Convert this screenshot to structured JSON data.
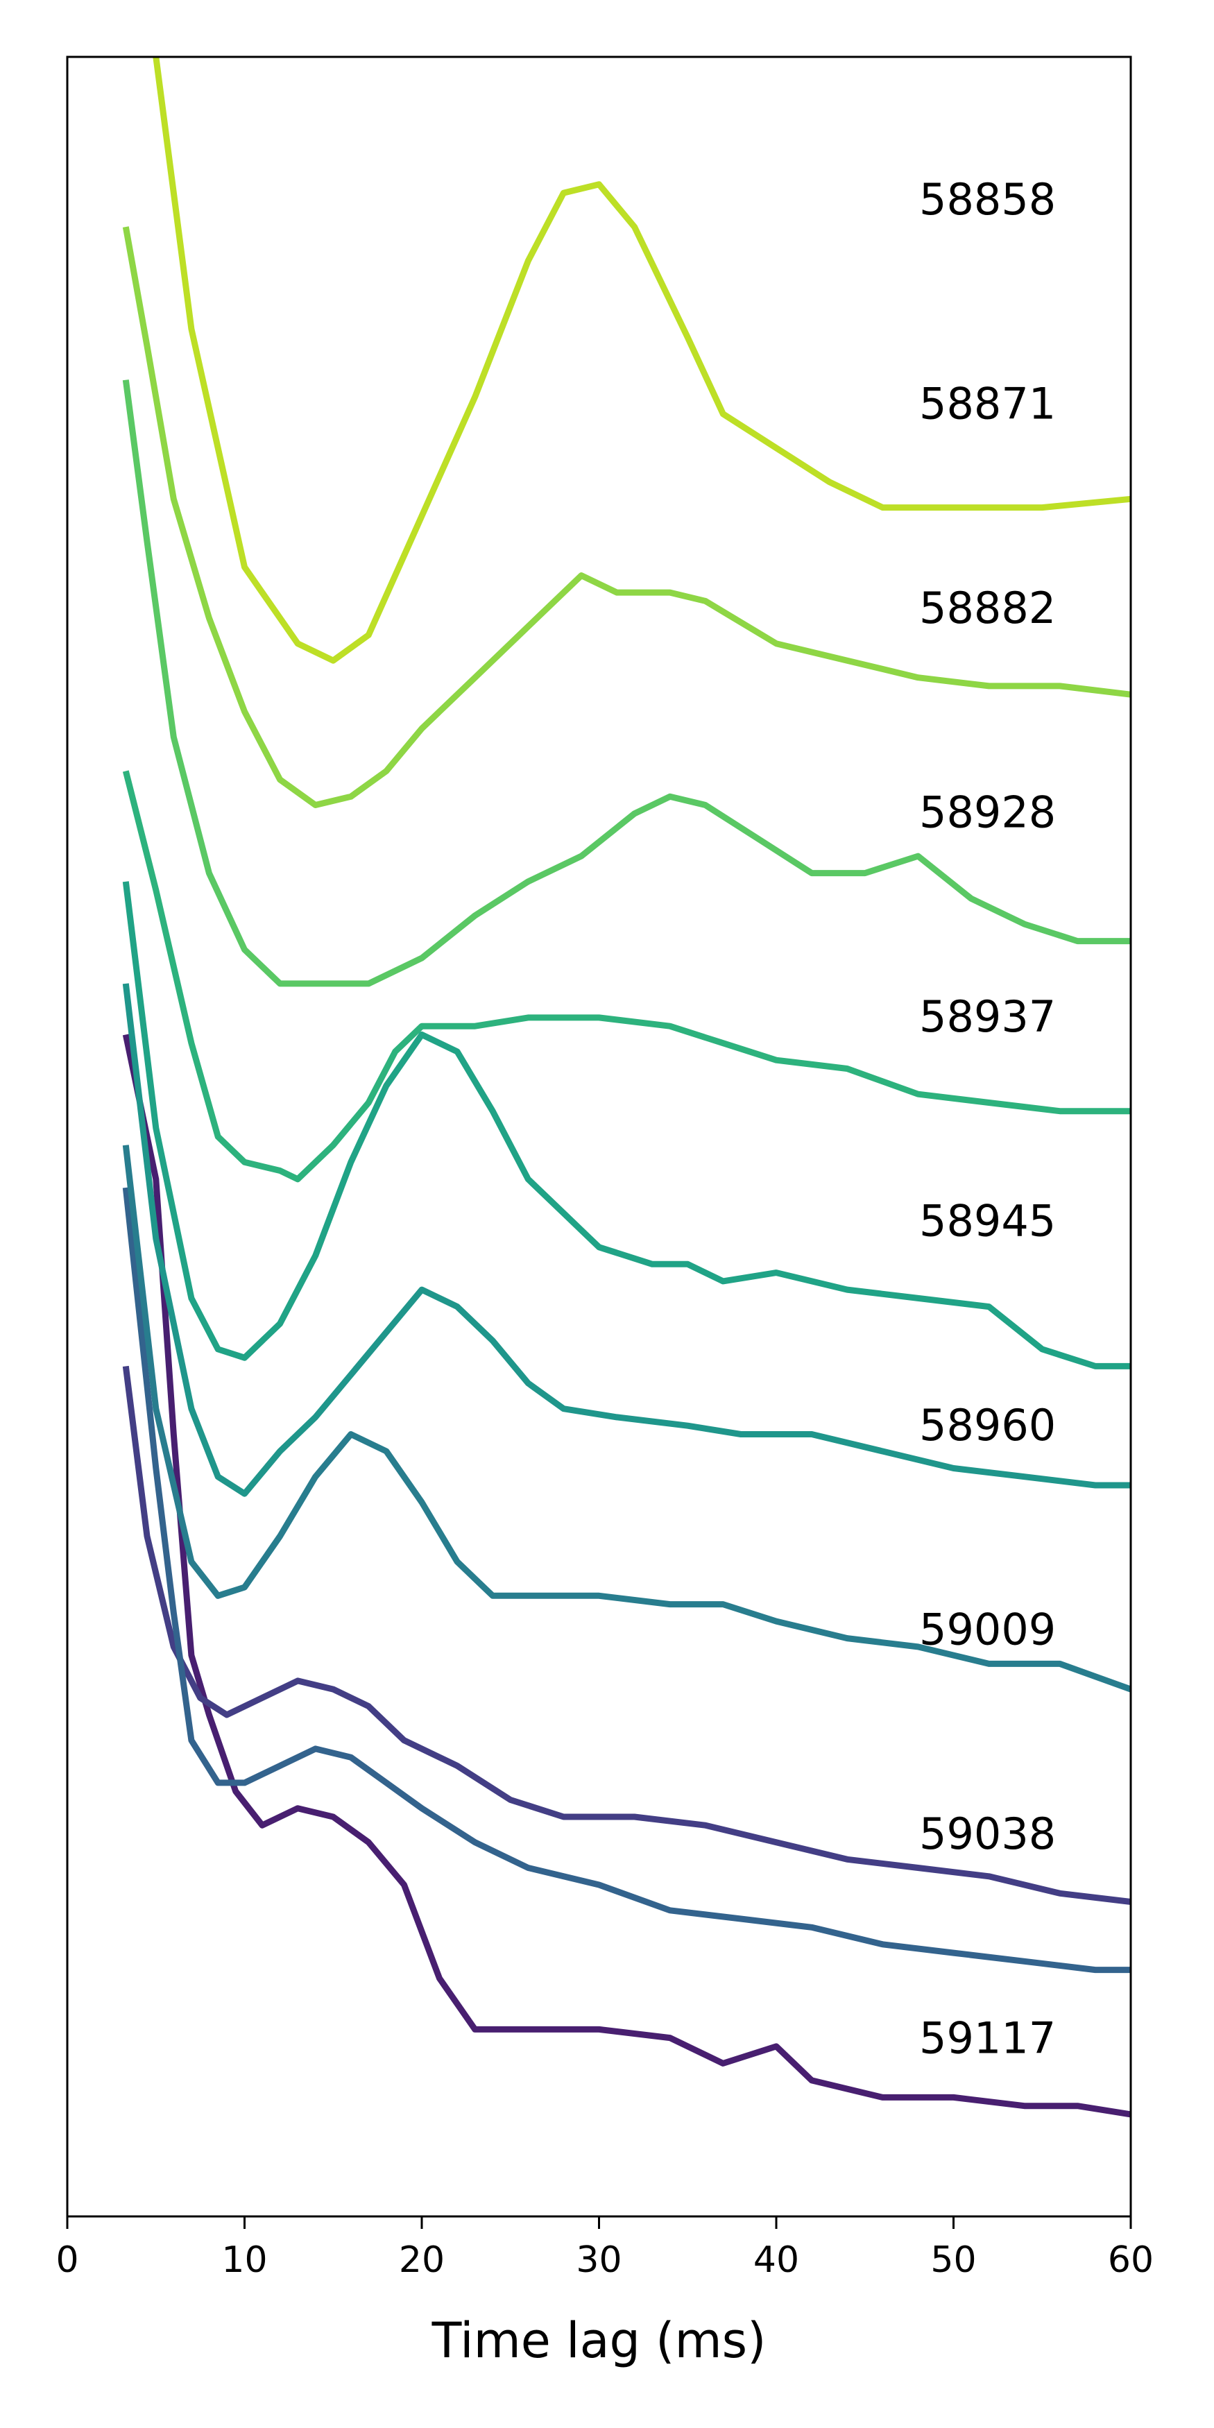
{
  "chart_data": {
    "type": "line",
    "title": "",
    "xlabel": "Time lag (ms)",
    "ylabel": "",
    "xlim": [
      0,
      60
    ],
    "xticks": [
      0,
      10,
      20,
      30,
      40,
      50,
      60
    ],
    "grid": false,
    "legend": "none",
    "y_axis_ticks_shown": false,
    "series_note_label_position": "inline at right",
    "series": [
      {
        "name": "58858",
        "color": "#bddf26",
        "points": [
          [
            5,
            31.2
          ],
          [
            7,
            28.0
          ],
          [
            10,
            25.2
          ],
          [
            13,
            24.3
          ],
          [
            15,
            24.1
          ],
          [
            17,
            24.4
          ],
          [
            20,
            25.8
          ],
          [
            23,
            27.2
          ],
          [
            26,
            28.8
          ],
          [
            28,
            29.6
          ],
          [
            30,
            29.7
          ],
          [
            32,
            29.2
          ],
          [
            35,
            27.9
          ],
          [
            37,
            27.0
          ],
          [
            40,
            26.6
          ],
          [
            43,
            26.2
          ],
          [
            46,
            25.9
          ],
          [
            50,
            25.9
          ],
          [
            55,
            25.9
          ],
          [
            60,
            26.0
          ]
        ]
      },
      {
        "name": "58871",
        "color": "#8ed645",
        "points": [
          [
            3.3,
            29.2
          ],
          [
            4.5,
            27.8
          ],
          [
            6,
            26.0
          ],
          [
            8,
            24.6
          ],
          [
            10,
            23.5
          ],
          [
            12,
            22.7
          ],
          [
            14,
            22.4
          ],
          [
            16,
            22.5
          ],
          [
            18,
            22.8
          ],
          [
            20,
            23.3
          ],
          [
            23,
            23.9
          ],
          [
            26,
            24.5
          ],
          [
            29,
            25.1
          ],
          [
            31,
            24.9
          ],
          [
            34,
            24.9
          ],
          [
            36,
            24.8
          ],
          [
            40,
            24.3
          ],
          [
            44,
            24.1
          ],
          [
            48,
            23.9
          ],
          [
            52,
            23.8
          ],
          [
            56,
            23.8
          ],
          [
            60,
            23.7
          ]
        ]
      },
      {
        "name": "58882",
        "color": "#5ac864",
        "points": [
          [
            3.3,
            27.4
          ],
          [
            4.5,
            25.5
          ],
          [
            6,
            23.2
          ],
          [
            8,
            21.6
          ],
          [
            10,
            20.7
          ],
          [
            12,
            20.3
          ],
          [
            14,
            20.3
          ],
          [
            17,
            20.3
          ],
          [
            20,
            20.6
          ],
          [
            23,
            21.1
          ],
          [
            26,
            21.5
          ],
          [
            29,
            21.8
          ],
          [
            32,
            22.3
          ],
          [
            34,
            22.5
          ],
          [
            36,
            22.4
          ],
          [
            39,
            22.0
          ],
          [
            42,
            21.6
          ],
          [
            45,
            21.6
          ],
          [
            48,
            21.8
          ],
          [
            51,
            21.3
          ],
          [
            54,
            21.0
          ],
          [
            57,
            20.8
          ],
          [
            60,
            20.8
          ]
        ]
      },
      {
        "name": "58928",
        "color": "#2db27d",
        "points": [
          [
            3.3,
            22.8
          ],
          [
            5,
            21.4
          ],
          [
            7,
            19.6
          ],
          [
            8.5,
            18.5
          ],
          [
            10,
            18.2
          ],
          [
            12,
            18.1
          ],
          [
            13,
            18.0
          ],
          [
            15,
            18.4
          ],
          [
            17,
            18.9
          ],
          [
            18.5,
            19.5
          ],
          [
            20,
            19.8
          ],
          [
            23,
            19.8
          ],
          [
            26,
            19.9
          ],
          [
            30,
            19.9
          ],
          [
            34,
            19.8
          ],
          [
            37,
            19.6
          ],
          [
            40,
            19.4
          ],
          [
            44,
            19.3
          ],
          [
            48,
            19.0
          ],
          [
            52,
            18.9
          ],
          [
            56,
            18.8
          ],
          [
            60,
            18.8
          ]
        ]
      },
      {
        "name": "58937",
        "color": "#20a386",
        "points": [
          [
            3.3,
            21.5
          ],
          [
            5,
            18.6
          ],
          [
            7,
            16.6
          ],
          [
            8.5,
            16.0
          ],
          [
            10,
            15.9
          ],
          [
            12,
            16.3
          ],
          [
            14,
            17.1
          ],
          [
            16,
            18.2
          ],
          [
            18,
            19.1
          ],
          [
            20,
            19.7
          ],
          [
            22,
            19.5
          ],
          [
            24,
            18.8
          ],
          [
            26,
            18.0
          ],
          [
            28,
            17.6
          ],
          [
            30,
            17.2
          ],
          [
            33,
            17.0
          ],
          [
            35,
            17.0
          ],
          [
            37,
            16.8
          ],
          [
            40,
            16.9
          ],
          [
            44,
            16.7
          ],
          [
            48,
            16.6
          ],
          [
            52,
            16.5
          ],
          [
            55,
            16.0
          ],
          [
            58,
            15.8
          ],
          [
            60,
            15.8
          ]
        ]
      },
      {
        "name": "58945",
        "color": "#1f968b",
        "points": [
          [
            3.3,
            20.3
          ],
          [
            5,
            17.3
          ],
          [
            7,
            15.3
          ],
          [
            8.5,
            14.5
          ],
          [
            10,
            14.3
          ],
          [
            12,
            14.8
          ],
          [
            14,
            15.2
          ],
          [
            16,
            15.7
          ],
          [
            18,
            16.2
          ],
          [
            20,
            16.7
          ],
          [
            22,
            16.5
          ],
          [
            24,
            16.1
          ],
          [
            26,
            15.6
          ],
          [
            28,
            15.3
          ],
          [
            31,
            15.2
          ],
          [
            35,
            15.1
          ],
          [
            38,
            15.0
          ],
          [
            42,
            15.0
          ],
          [
            46,
            14.8
          ],
          [
            50,
            14.6
          ],
          [
            54,
            14.5
          ],
          [
            58,
            14.4
          ],
          [
            60,
            14.4
          ]
        ]
      },
      {
        "name": "58960",
        "color": "#287d8e",
        "points": [
          [
            3.3,
            18.4
          ],
          [
            5,
            15.3
          ],
          [
            7,
            13.5
          ],
          [
            8.5,
            13.1
          ],
          [
            10,
            13.2
          ],
          [
            12,
            13.8
          ],
          [
            14,
            14.5
          ],
          [
            16,
            15.0
          ],
          [
            18,
            14.8
          ],
          [
            20,
            14.2
          ],
          [
            22,
            13.5
          ],
          [
            24,
            13.1
          ],
          [
            26,
            13.1
          ],
          [
            30,
            13.1
          ],
          [
            34,
            13.0
          ],
          [
            37,
            13.0
          ],
          [
            40,
            12.8
          ],
          [
            44,
            12.6
          ],
          [
            48,
            12.5
          ],
          [
            52,
            12.3
          ],
          [
            56,
            12.3
          ],
          [
            60,
            12.0
          ]
        ]
      },
      {
        "name": "59009",
        "color": "#33638d",
        "points": [
          [
            3.3,
            17.9
          ],
          [
            5,
            14.6
          ],
          [
            6,
            12.9
          ],
          [
            7,
            11.4
          ],
          [
            8.5,
            10.9
          ],
          [
            10,
            10.9
          ],
          [
            12,
            11.1
          ],
          [
            14,
            11.3
          ],
          [
            16,
            11.2
          ],
          [
            18,
            10.9
          ],
          [
            20,
            10.6
          ],
          [
            23,
            10.2
          ],
          [
            26,
            9.9
          ],
          [
            30,
            9.7
          ],
          [
            34,
            9.4
          ],
          [
            38,
            9.3
          ],
          [
            42,
            9.2
          ],
          [
            46,
            9.0
          ],
          [
            50,
            8.9
          ],
          [
            54,
            8.8
          ],
          [
            58,
            8.7
          ],
          [
            60,
            8.7
          ]
        ]
      },
      {
        "name": "59038",
        "color": "#433e85",
        "points": [
          [
            3.3,
            15.8
          ],
          [
            4.5,
            13.8
          ],
          [
            6,
            12.5
          ],
          [
            7.5,
            11.9
          ],
          [
            9,
            11.7
          ],
          [
            11,
            11.9
          ],
          [
            13,
            12.1
          ],
          [
            15,
            12.0
          ],
          [
            17,
            11.8
          ],
          [
            19,
            11.4
          ],
          [
            22,
            11.1
          ],
          [
            25,
            10.7
          ],
          [
            28,
            10.5
          ],
          [
            32,
            10.5
          ],
          [
            36,
            10.4
          ],
          [
            40,
            10.2
          ],
          [
            44,
            10.0
          ],
          [
            48,
            9.9
          ],
          [
            52,
            9.8
          ],
          [
            56,
            9.6
          ],
          [
            60,
            9.5
          ]
        ]
      },
      {
        "name": "59117",
        "color": "#481f70",
        "points": [
          [
            3.3,
            19.7
          ],
          [
            5,
            18.0
          ],
          [
            6,
            15.0
          ],
          [
            7,
            12.4
          ],
          [
            8,
            11.7
          ],
          [
            9.5,
            10.8
          ],
          [
            11,
            10.4
          ],
          [
            13,
            10.6
          ],
          [
            15,
            10.5
          ],
          [
            17,
            10.2
          ],
          [
            19,
            9.7
          ],
          [
            21,
            8.6
          ],
          [
            23,
            8.0
          ],
          [
            26,
            8.0
          ],
          [
            30,
            8.0
          ],
          [
            34,
            7.9
          ],
          [
            37,
            7.6
          ],
          [
            40,
            7.8
          ],
          [
            42,
            7.4
          ],
          [
            46,
            7.2
          ],
          [
            50,
            7.2
          ],
          [
            54,
            7.1
          ],
          [
            57,
            7.1
          ],
          [
            60,
            7.0
          ]
        ]
      }
    ]
  }
}
